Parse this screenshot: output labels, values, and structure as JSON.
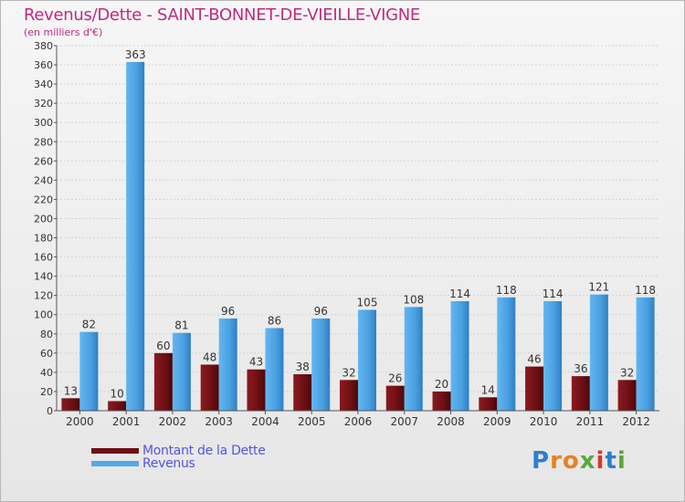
{
  "header": {
    "title": "Revenus/Dette - SAINT-BONNET-DE-VIEILLE-VIGNE",
    "subtitle": "(en milliers d'€)"
  },
  "legend": {
    "dette_label": "Montant de la Dette",
    "revenus_label": "Revenus"
  },
  "logo": {
    "text": "Proxiti"
  },
  "colors": {
    "dette": "#6e0f14",
    "revenus": "#55a8e6",
    "title": "#c02a7f",
    "legend_text": "#5555dd"
  },
  "chart_data": {
    "type": "bar",
    "title": "Revenus/Dette - SAINT-BONNET-DE-VIEILLE-VIGNE",
    "subtitle": "(en milliers d'€)",
    "categories": [
      "2000",
      "2001",
      "2002",
      "2003",
      "2004",
      "2005",
      "2006",
      "2007",
      "2008",
      "2009",
      "2010",
      "2011",
      "2012"
    ],
    "series": [
      {
        "name": "Montant de la Dette",
        "values": [
          13,
          10,
          60,
          48,
          43,
          38,
          32,
          26,
          20,
          14,
          46,
          36,
          32
        ]
      },
      {
        "name": "Revenus",
        "values": [
          82,
          363,
          81,
          96,
          86,
          96,
          105,
          108,
          114,
          118,
          114,
          121,
          118
        ]
      }
    ],
    "ylim": [
      0,
      380
    ],
    "ytick_step": 20,
    "grid": true,
    "legend_position": "bottom-left"
  }
}
